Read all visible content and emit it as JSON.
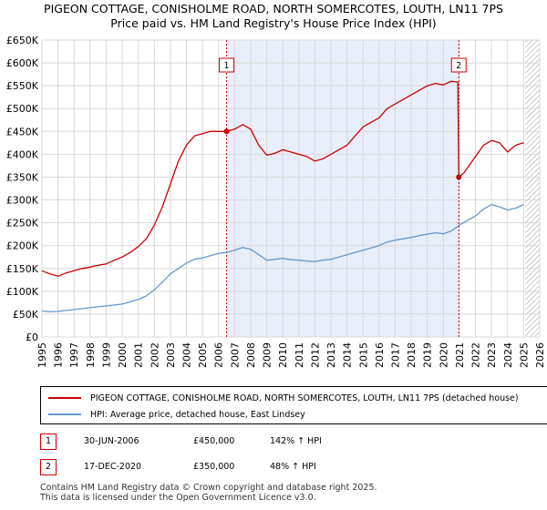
{
  "chart_data": {
    "type": "line",
    "title": "PIGEON COTTAGE, CONISHOLME ROAD, NORTH SOMERCOTES, LOUTH, LN11 7PS",
    "subtitle": "Price paid vs. HM Land Registry's House Price Index (HPI)",
    "xlabel": "",
    "ylabel": "",
    "xlim": [
      1995,
      2026
    ],
    "ylim": [
      0,
      650000
    ],
    "x_ticks": [
      "1995",
      "1996",
      "1997",
      "1998",
      "1999",
      "2000",
      "2001",
      "2002",
      "2003",
      "2004",
      "2005",
      "2006",
      "2007",
      "2008",
      "2009",
      "2010",
      "2011",
      "2012",
      "2013",
      "2014",
      "2015",
      "2016",
      "2017",
      "2018",
      "2019",
      "2020",
      "2021",
      "2022",
      "2023",
      "2024",
      "2025",
      "2026"
    ],
    "y_ticks": [
      {
        "value": 0,
        "label": "£0"
      },
      {
        "value": 50000,
        "label": "£50K"
      },
      {
        "value": 100000,
        "label": "£100K"
      },
      {
        "value": 150000,
        "label": "£150K"
      },
      {
        "value": 200000,
        "label": "£200K"
      },
      {
        "value": 250000,
        "label": "£250K"
      },
      {
        "value": 300000,
        "label": "£300K"
      },
      {
        "value": 350000,
        "label": "£350K"
      },
      {
        "value": 400000,
        "label": "£400K"
      },
      {
        "value": 450000,
        "label": "£450K"
      },
      {
        "value": 500000,
        "label": "£500K"
      },
      {
        "value": 550000,
        "label": "£550K"
      },
      {
        "value": 600000,
        "label": "£600K"
      },
      {
        "value": 650000,
        "label": "£650K"
      }
    ],
    "grid": true,
    "shaded_period": [
      2006.5,
      2020.96
    ],
    "future_hatch_from": 2025.1,
    "series": [
      {
        "name": "PIGEON COTTAGE, CONISHOLME ROAD, NORTH SOMERCOTES, LOUTH, LN11 7PS (detached house)",
        "color": "#cc0000",
        "x": [
          1995.0,
          1995.5,
          1996.0,
          1996.5,
          1997.0,
          1997.5,
          1998.0,
          1998.5,
          1999.0,
          1999.5,
          2000.0,
          2000.5,
          2001.0,
          2001.5,
          2002.0,
          2002.5,
          2003.0,
          2003.5,
          2004.0,
          2004.5,
          2005.0,
          2005.5,
          2006.0,
          2006.5,
          2007.0,
          2007.5,
          2008.0,
          2008.5,
          2009.0,
          2009.5,
          2010.0,
          2010.5,
          2011.0,
          2011.5,
          2012.0,
          2012.5,
          2013.0,
          2013.5,
          2014.0,
          2014.5,
          2015.0,
          2015.5,
          2016.0,
          2016.5,
          2017.0,
          2017.5,
          2018.0,
          2018.5,
          2019.0,
          2019.5,
          2020.0,
          2020.5,
          2020.9,
          2020.96,
          2021.3,
          2021.7,
          2022.0,
          2022.5,
          2023.0,
          2023.5,
          2024.0,
          2024.5,
          2025.0
        ],
        "values": [
          145000,
          138000,
          133000,
          140000,
          145000,
          150000,
          153000,
          157000,
          160000,
          168000,
          175000,
          185000,
          198000,
          215000,
          245000,
          285000,
          335000,
          385000,
          420000,
          440000,
          445000,
          450000,
          450000,
          450000,
          455000,
          465000,
          455000,
          420000,
          398000,
          402000,
          410000,
          405000,
          400000,
          395000,
          385000,
          390000,
          400000,
          410000,
          420000,
          440000,
          460000,
          470000,
          480000,
          500000,
          510000,
          520000,
          530000,
          540000,
          550000,
          555000,
          552000,
          560000,
          558000,
          350000,
          360000,
          380000,
          395000,
          420000,
          430000,
          425000,
          405000,
          420000,
          425000
        ]
      },
      {
        "name": "HPI: Average price, detached house, East Lindsey",
        "color": "#6699cc",
        "x": [
          1995.0,
          1995.5,
          1996.0,
          1996.5,
          1997.0,
          1997.5,
          1998.0,
          1998.5,
          1999.0,
          1999.5,
          2000.0,
          2000.5,
          2001.0,
          2001.5,
          2002.0,
          2002.5,
          2003.0,
          2003.5,
          2004.0,
          2004.5,
          2005.0,
          2005.5,
          2006.0,
          2006.5,
          2007.0,
          2007.5,
          2008.0,
          2008.5,
          2009.0,
          2009.5,
          2010.0,
          2010.5,
          2011.0,
          2011.5,
          2012.0,
          2012.5,
          2013.0,
          2013.5,
          2014.0,
          2014.5,
          2015.0,
          2015.5,
          2016.0,
          2016.5,
          2017.0,
          2017.5,
          2018.0,
          2018.5,
          2019.0,
          2019.5,
          2020.0,
          2020.5,
          2021.0,
          2021.5,
          2022.0,
          2022.5,
          2023.0,
          2023.5,
          2024.0,
          2024.5,
          2025.0
        ],
        "values": [
          57000,
          55000,
          56000,
          58000,
          60000,
          62000,
          64000,
          66000,
          68000,
          70000,
          72000,
          77000,
          82000,
          90000,
          103000,
          120000,
          138000,
          150000,
          162000,
          170000,
          173000,
          178000,
          183000,
          185000,
          190000,
          196000,
          192000,
          180000,
          168000,
          170000,
          172000,
          169000,
          168000,
          166000,
          165000,
          168000,
          170000,
          175000,
          180000,
          185000,
          190000,
          195000,
          200000,
          208000,
          212000,
          215000,
          218000,
          222000,
          225000,
          228000,
          226000,
          232000,
          245000,
          255000,
          265000,
          280000,
          290000,
          285000,
          278000,
          282000,
          290000
        ]
      }
    ],
    "markers": [
      {
        "label": "1",
        "x": 2006.5,
        "y": 450000
      },
      {
        "label": "2",
        "x": 2020.96,
        "y": 350000
      }
    ]
  },
  "legend": {
    "property_label": "PIGEON COTTAGE, CONISHOLME ROAD, NORTH SOMERCOTES, LOUTH, LN11 7PS (detached house)",
    "hpi_label": "HPI: Average price, detached house, East Lindsey"
  },
  "sales": [
    {
      "num": "1",
      "date": "30-JUN-2006",
      "price": "£450,000",
      "hpi": "142% ↑ HPI"
    },
    {
      "num": "2",
      "date": "17-DEC-2020",
      "price": "£350,000",
      "hpi": "48% ↑ HPI"
    }
  ],
  "footer": {
    "line1": "Contains HM Land Registry data © Crown copyright and database right 2025.",
    "line2": "This data is licensed under the Open Government Licence v3.0."
  },
  "colors": {
    "property": "#cc0000",
    "hpi": "#6699cc",
    "shade": "#e8eefa",
    "grid": "#d8d8d8"
  }
}
